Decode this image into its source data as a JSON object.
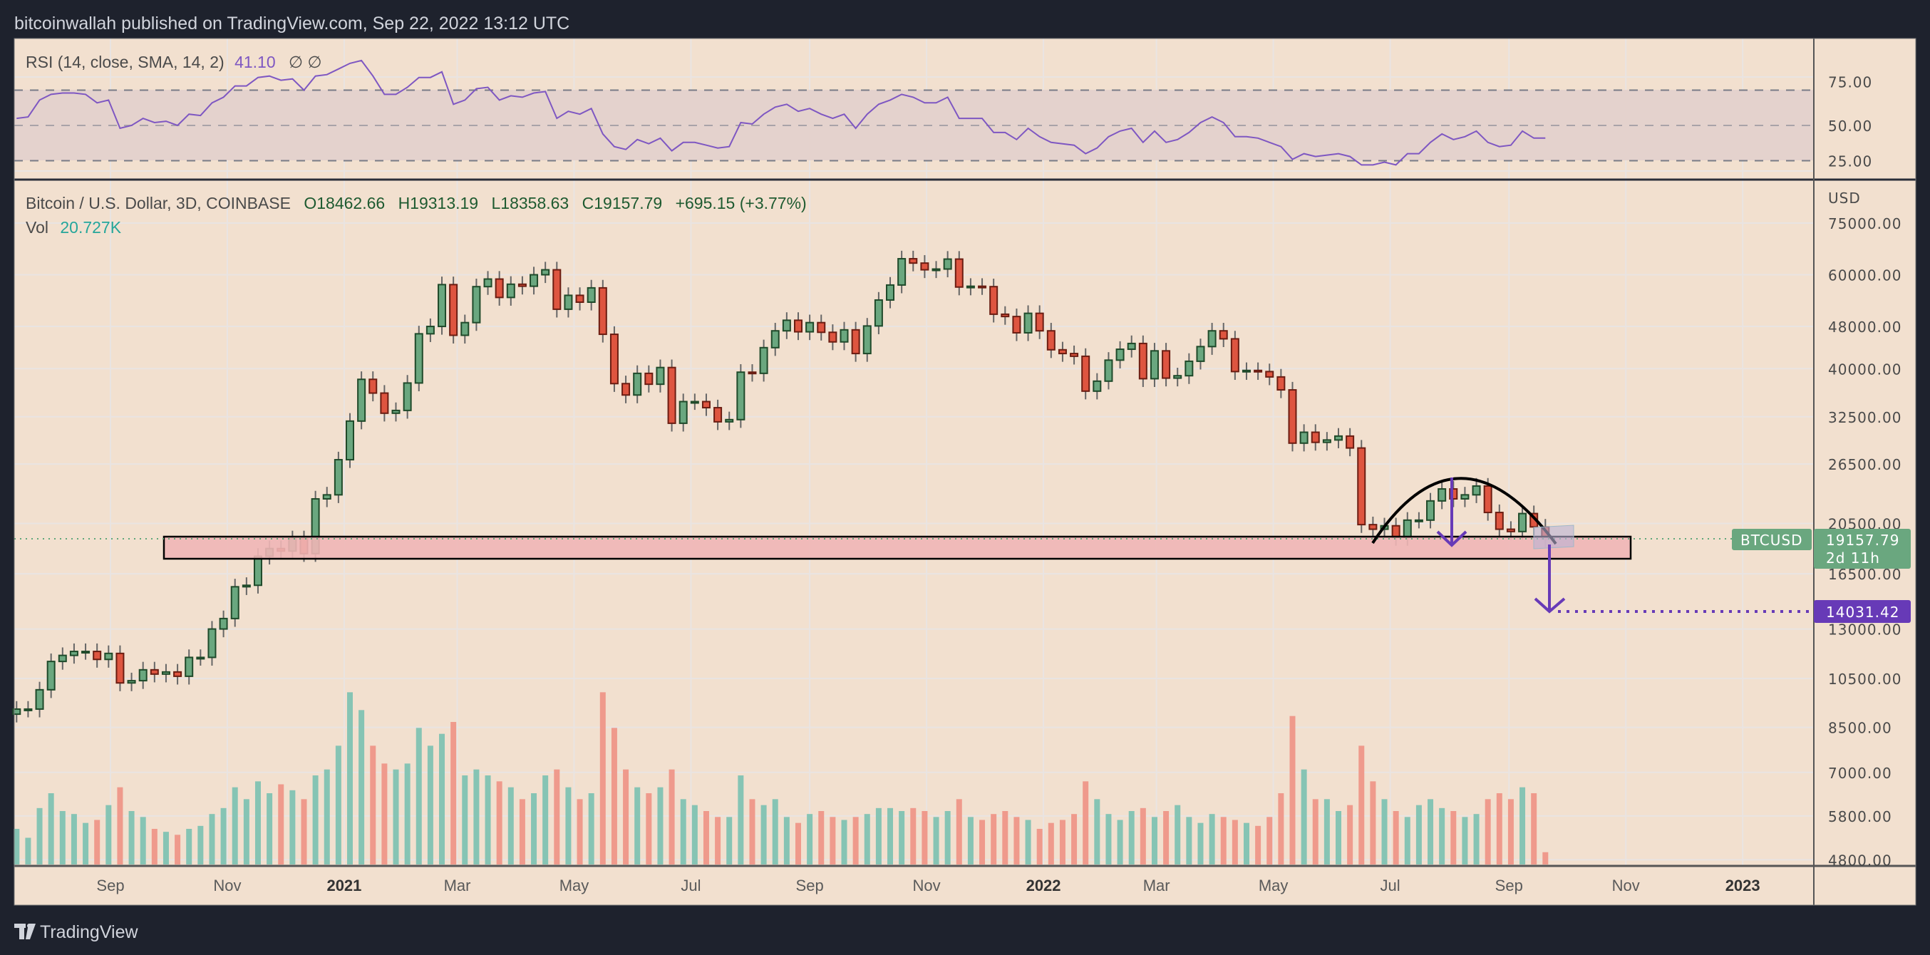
{
  "header": {
    "published": "bitcoinwallah published on TradingView.com, Sep 22, 2022 13:12 UTC"
  },
  "footer": {
    "brand": "TradingView"
  },
  "rsi_legend": {
    "label": "RSI (14, close, SMA, 14, 2)",
    "value": "41.10",
    "extra": "∅  ∅"
  },
  "price_legend": {
    "title": "Bitcoin / U.S. Dollar, 3D, COINBASE",
    "open": "O18462.66",
    "high": "H19313.19",
    "low": "L18358.63",
    "close": "C19157.79",
    "change": "+695.15 (+3.77%)",
    "vol_label": "Vol",
    "vol_value": "20.727K"
  },
  "labels": {
    "currency": "USD",
    "symbol": "BTCUSD",
    "last_price": "19157.79",
    "countdown": "2d 11h",
    "target_price": "14031.42"
  },
  "colors": {
    "background": "#f2e0cf",
    "frame": "#1e222d",
    "up": "#6aa77f",
    "up_border": "#1f4a2a",
    "down": "#de5540",
    "down_border": "#6b1d12",
    "vol_up": "#86c4b4",
    "vol_down": "#ef9a8c",
    "rsi_line": "#7e57c2",
    "target": "#673ab7",
    "zone": "#f0b6b6",
    "legend_green": "#1e5a30",
    "vol_teal": "#26a69a"
  },
  "chart_data": {
    "type": "candlestick",
    "title": "Bitcoin / U.S. Dollar, 3D, COINBASE",
    "scale": "log",
    "start_date": "2020-07-14",
    "step_days": 6,
    "close_k_usd": [
      9.2,
      9.2,
      10.0,
      11.3,
      11.6,
      11.8,
      11.8,
      11.4,
      11.7,
      10.3,
      10.4,
      10.9,
      10.7,
      10.8,
      10.6,
      11.5,
      11.5,
      13.0,
      13.6,
      15.6,
      15.7,
      17.8,
      18.4,
      18.2,
      19.2,
      18.0,
      22.8,
      23.2,
      27.0,
      31.9,
      38.2,
      36.0,
      33.0,
      33.4,
      37.6,
      46.5,
      48.0,
      57.5,
      46.2,
      48.8,
      57.0,
      58.9,
      54.4,
      57.6,
      57.1,
      60.0,
      61.3,
      51.7,
      54.9,
      53.3,
      56.7,
      46.4,
      37.5,
      35.7,
      39.2,
      37.4,
      40.2,
      31.6,
      34.7,
      34.7,
      33.8,
      31.8,
      32.1,
      39.4,
      39.2,
      43.8,
      47.1,
      49.3,
      46.9,
      48.8,
      46.8,
      44.9,
      47.3,
      42.7,
      48.1,
      53.8,
      57.4,
      64.3,
      63.1,
      61.3,
      61.5,
      64.2,
      56.9,
      57.1,
      57.0,
      50.6,
      50.1,
      46.7,
      50.8,
      47.1,
      43.4,
      42.7,
      42.2,
      36.3,
      37.9,
      41.5,
      43.5,
      44.6,
      38.3,
      43.2,
      38.4,
      38.8,
      41.3,
      44.0,
      47.1,
      45.5,
      39.5,
      39.7,
      39.5,
      38.6,
      36.5,
      29.0,
      30.4,
      29.1,
      29.4,
      29.9,
      28.4,
      20.4,
      20.0,
      20.3,
      19.3,
      20.8,
      20.8,
      22.6,
      23.8,
      22.8,
      23.2,
      24.1,
      21.5,
      20.0,
      19.8,
      21.4,
      20.2,
      19.16
    ],
    "first_open_k_usd": 9.0,
    "volume_k": [
      60,
      45,
      95,
      120,
      90,
      85,
      70,
      75,
      100,
      130,
      90,
      80,
      60,
      55,
      50,
      60,
      65,
      85,
      95,
      130,
      110,
      140,
      120,
      135,
      125,
      110,
      150,
      160,
      200,
      290,
      260,
      200,
      170,
      160,
      170,
      230,
      200,
      220,
      240,
      150,
      160,
      150,
      140,
      130,
      110,
      120,
      150,
      160,
      130,
      110,
      120,
      290,
      230,
      160,
      130,
      120,
      130,
      160,
      110,
      100,
      90,
      80,
      80,
      150,
      110,
      100,
      110,
      80,
      70,
      85,
      90,
      80,
      75,
      80,
      85,
      95,
      95,
      90,
      95,
      90,
      80,
      90,
      110,
      80,
      75,
      85,
      90,
      80,
      75,
      60,
      70,
      75,
      85,
      140,
      110,
      85,
      75,
      90,
      95,
      80,
      90,
      100,
      80,
      70,
      85,
      80,
      75,
      70,
      65,
      80,
      120,
      250,
      160,
      110,
      110,
      90,
      100,
      200,
      140,
      110,
      90,
      80,
      100,
      110,
      95,
      90,
      80,
      85,
      110,
      120,
      110,
      130,
      120,
      20.7
    ],
    "rsi": [
      55,
      56,
      68,
      72,
      73,
      73,
      72,
      66,
      68,
      48,
      50,
      55,
      52,
      53,
      50,
      58,
      57,
      66,
      70,
      78,
      78,
      84,
      85,
      82,
      83,
      75,
      85,
      86,
      90,
      94,
      96,
      85,
      72,
      72,
      77,
      84,
      84,
      88,
      65,
      68,
      76,
      77,
      68,
      71,
      70,
      73,
      74,
      55,
      60,
      58,
      62,
      44,
      35,
      33,
      40,
      37,
      41,
      32,
      38,
      38,
      36,
      34,
      35,
      52,
      51,
      58,
      63,
      65,
      60,
      62,
      58,
      55,
      58,
      48,
      58,
      65,
      68,
      72,
      70,
      66,
      66,
      70,
      55,
      55,
      55,
      45,
      45,
      40,
      48,
      42,
      38,
      37,
      36,
      30,
      34,
      42,
      46,
      48,
      38,
      46,
      38,
      40,
      45,
      52,
      56,
      52,
      42,
      42,
      41,
      38,
      35,
      26,
      30,
      28,
      29,
      30,
      28,
      22,
      22,
      24,
      22,
      30,
      30,
      38,
      44,
      40,
      42,
      46,
      38,
      35,
      36,
      46,
      41,
      41
    ],
    "rsi_levels": [
      75,
      50,
      25
    ],
    "rsi_ticks": [
      "75.00",
      "50.00",
      "25.00"
    ],
    "price_ticks": [
      {
        "label": "75000.00",
        "value": 75000
      },
      {
        "label": "60000.00",
        "value": 60000
      },
      {
        "label": "48000.00",
        "value": 48000
      },
      {
        "label": "40000.00",
        "value": 40000
      },
      {
        "label": "32500.00",
        "value": 32500
      },
      {
        "label": "26500.00",
        "value": 26500
      },
      {
        "label": "20500.00",
        "value": 20500
      },
      {
        "label": "16500.00",
        "value": 16500
      },
      {
        "label": "13000.00",
        "value": 13000
      },
      {
        "label": "10500.00",
        "value": 10500
      },
      {
        "label": "8500.00",
        "value": 8500
      },
      {
        "label": "7000.00",
        "value": 7000
      },
      {
        "label": "5800.00",
        "value": 5800
      },
      {
        "label": "4800.00",
        "value": 4800
      }
    ],
    "time_ticks": [
      {
        "label": "Sep",
        "date": "2020-09-01",
        "year": false
      },
      {
        "label": "Nov",
        "date": "2020-11-01",
        "year": false
      },
      {
        "label": "2021",
        "date": "2021-01-01",
        "year": true
      },
      {
        "label": "Mar",
        "date": "2021-03-01",
        "year": false
      },
      {
        "label": "May",
        "date": "2021-05-01",
        "year": false
      },
      {
        "label": "Jul",
        "date": "2021-07-01",
        "year": false
      },
      {
        "label": "Sep",
        "date": "2021-09-01",
        "year": false
      },
      {
        "label": "Nov",
        "date": "2021-11-01",
        "year": false
      },
      {
        "label": "2022",
        "date": "2022-01-01",
        "year": true
      },
      {
        "label": "Mar",
        "date": "2022-03-01",
        "year": false
      },
      {
        "label": "May",
        "date": "2022-05-01",
        "year": false
      },
      {
        "label": "Jul",
        "date": "2022-07-01",
        "year": false
      },
      {
        "label": "Sep",
        "date": "2022-09-01",
        "year": false
      },
      {
        "label": "Nov",
        "date": "2022-11-01",
        "year": false
      },
      {
        "label": "2023",
        "date": "2023-01-01",
        "year": true
      }
    ],
    "annotations": {
      "support_zone_usd": [
        17600,
        19800
      ],
      "rounded_top": {
        "start": "2022-06-20",
        "peak": "2022-08-12",
        "end": "2022-09-20",
        "peak_usd": 24800,
        "edge_usd": 19600
      },
      "measured_move": {
        "from_usd": 24800,
        "to_usd": 19300,
        "date": "2022-08-12"
      },
      "projection": {
        "from_usd": 19500,
        "to_usd": 14031.42,
        "date": "2022-09-18"
      },
      "last_price_usd": 19157.79
    }
  }
}
